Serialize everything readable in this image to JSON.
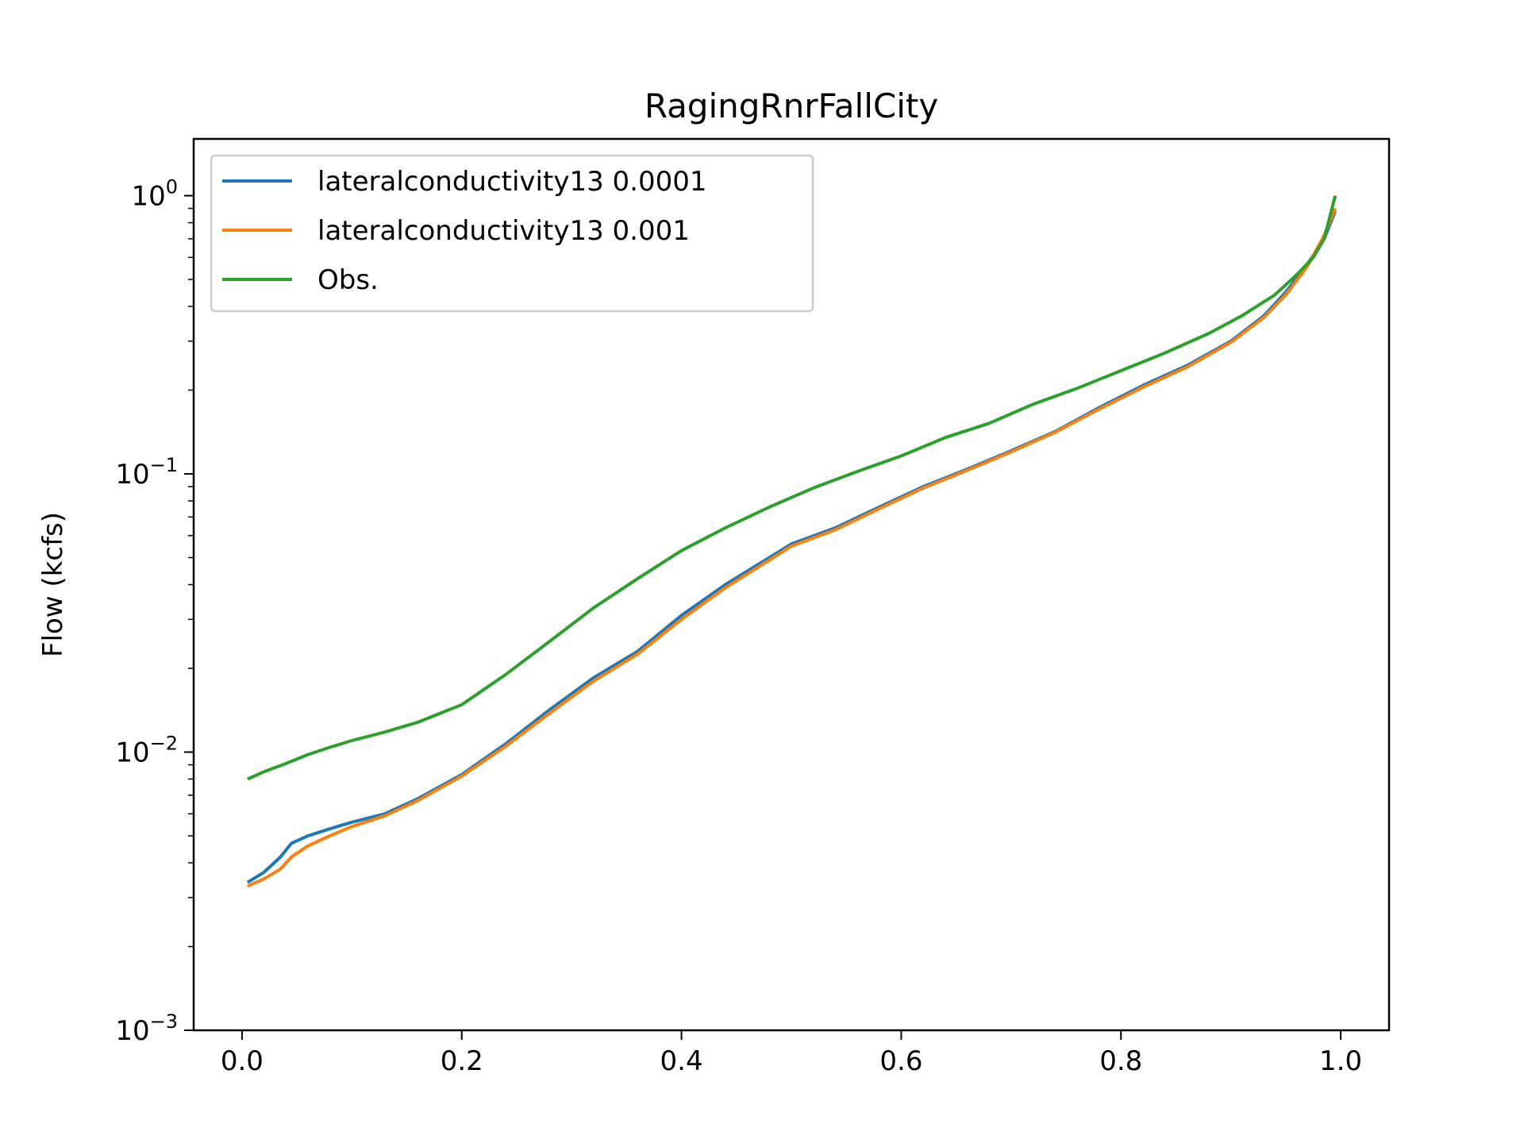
{
  "chart_data": {
    "type": "line",
    "title": "RagingRnrFallCity",
    "xlabel": "",
    "ylabel": "Flow (kcfs)",
    "xlim": [
      -0.044,
      1.044
    ],
    "ylim": [
      0.001,
      1.6
    ],
    "yscale": "log",
    "grid": false,
    "legend_position": "top-left",
    "x_ticks": [
      {
        "value": 0.0,
        "label": "0.0"
      },
      {
        "value": 0.2,
        "label": "0.2"
      },
      {
        "value": 0.4,
        "label": "0.4"
      },
      {
        "value": 0.6,
        "label": "0.6"
      },
      {
        "value": 0.8,
        "label": "0.8"
      },
      {
        "value": 1.0,
        "label": "1.0"
      }
    ],
    "y_ticks": [
      {
        "value": 0.001,
        "base": "10",
        "exp": "−3"
      },
      {
        "value": 0.01,
        "base": "10",
        "exp": "−2"
      },
      {
        "value": 0.1,
        "base": "10",
        "exp": "−1"
      },
      {
        "value": 1.0,
        "base": "10",
        "exp": "0"
      }
    ],
    "series": [
      {
        "name": "lateralconductivity13 0.0001",
        "color": "#1f77b4",
        "x": [
          0.005,
          0.02,
          0.035,
          0.045,
          0.06,
          0.08,
          0.1,
          0.13,
          0.16,
          0.2,
          0.24,
          0.28,
          0.32,
          0.36,
          0.4,
          0.44,
          0.48,
          0.5,
          0.54,
          0.58,
          0.62,
          0.66,
          0.7,
          0.74,
          0.78,
          0.82,
          0.86,
          0.9,
          0.93,
          0.95,
          0.97,
          0.985,
          0.995
        ],
        "y": [
          0.0034,
          0.0037,
          0.0042,
          0.0047,
          0.005,
          0.0053,
          0.0056,
          0.006,
          0.0068,
          0.0083,
          0.0107,
          0.0142,
          0.0185,
          0.023,
          0.031,
          0.04,
          0.05,
          0.056,
          0.064,
          0.076,
          0.09,
          0.104,
          0.121,
          0.142,
          0.173,
          0.208,
          0.245,
          0.3,
          0.37,
          0.45,
          0.57,
          0.7,
          0.88
        ]
      },
      {
        "name": "lateralconductivity13 0.001",
        "color": "#ff7f0e",
        "x": [
          0.005,
          0.02,
          0.035,
          0.045,
          0.06,
          0.08,
          0.1,
          0.13,
          0.16,
          0.2,
          0.24,
          0.28,
          0.32,
          0.36,
          0.4,
          0.44,
          0.48,
          0.5,
          0.54,
          0.58,
          0.62,
          0.66,
          0.7,
          0.74,
          0.78,
          0.82,
          0.86,
          0.9,
          0.93,
          0.95,
          0.97,
          0.985,
          0.995
        ],
        "y": [
          0.0033,
          0.0035,
          0.0038,
          0.0042,
          0.0046,
          0.005,
          0.0054,
          0.0059,
          0.0067,
          0.0082,
          0.0105,
          0.0138,
          0.018,
          0.0225,
          0.03,
          0.039,
          0.049,
          0.055,
          0.063,
          0.075,
          0.089,
          0.103,
          0.12,
          0.141,
          0.171,
          0.205,
          0.242,
          0.297,
          0.365,
          0.44,
          0.56,
          0.72,
          0.9
        ]
      },
      {
        "name": "Obs.",
        "color": "#2ca02c",
        "x": [
          0.005,
          0.02,
          0.04,
          0.06,
          0.08,
          0.1,
          0.13,
          0.16,
          0.2,
          0.24,
          0.28,
          0.32,
          0.36,
          0.4,
          0.44,
          0.48,
          0.52,
          0.56,
          0.6,
          0.64,
          0.68,
          0.72,
          0.76,
          0.8,
          0.84,
          0.88,
          0.91,
          0.94,
          0.96,
          0.975,
          0.985,
          0.995
        ],
        "y": [
          0.008,
          0.0085,
          0.0091,
          0.0098,
          0.0104,
          0.011,
          0.0118,
          0.0128,
          0.0148,
          0.019,
          0.025,
          0.033,
          0.042,
          0.053,
          0.064,
          0.076,
          0.089,
          0.102,
          0.116,
          0.135,
          0.152,
          0.178,
          0.203,
          0.235,
          0.272,
          0.32,
          0.37,
          0.44,
          0.52,
          0.6,
          0.7,
          1.0
        ]
      }
    ]
  }
}
